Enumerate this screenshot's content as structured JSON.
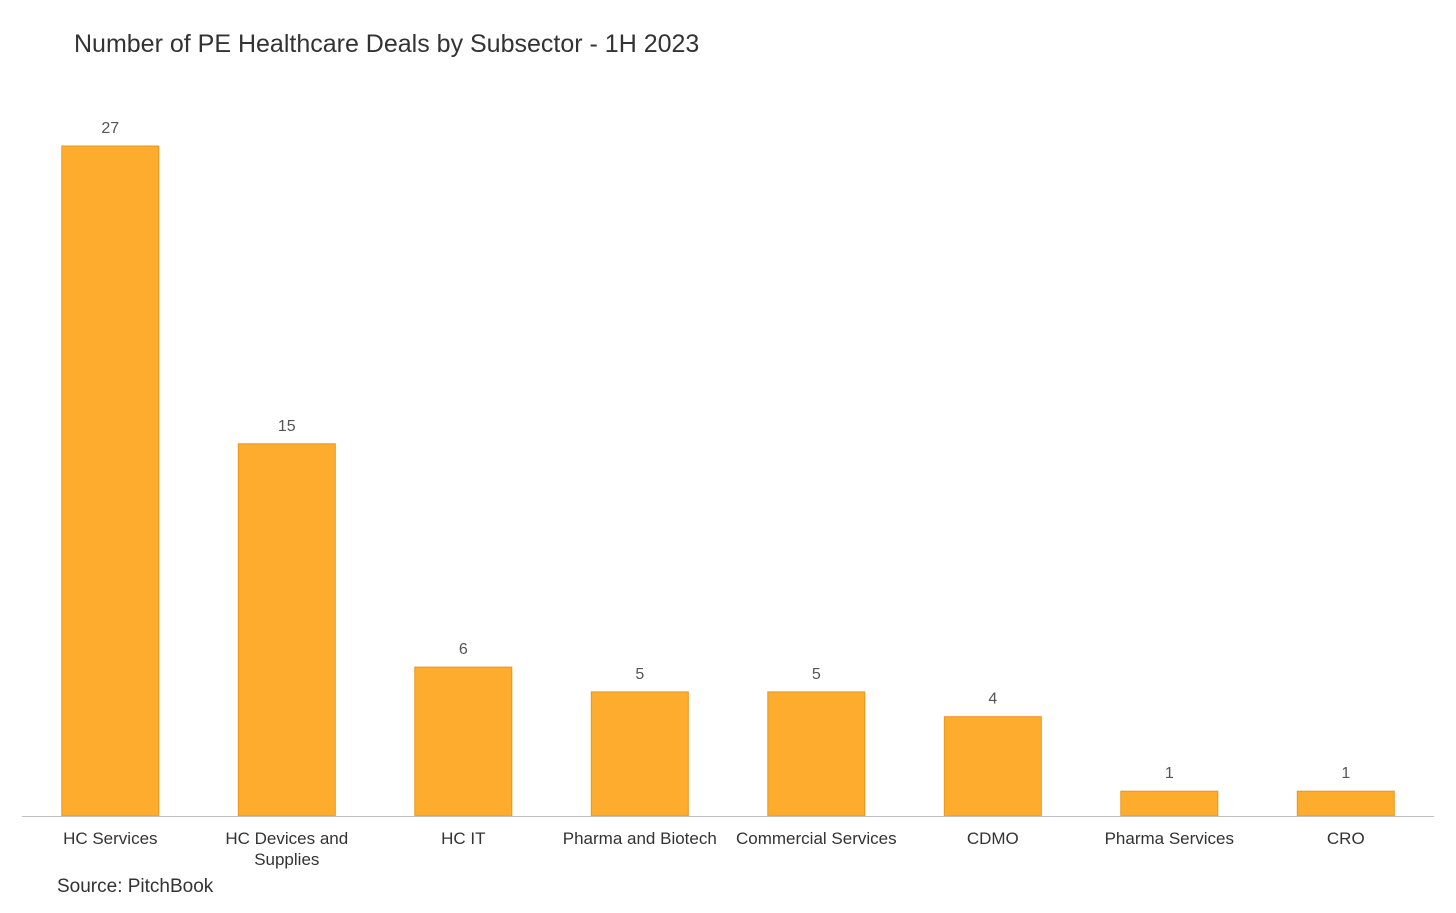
{
  "chart_data": {
    "type": "bar",
    "title": "Number of PE Healthcare Deals by Subsector - 1H 2023",
    "xlabel": "",
    "ylabel": "",
    "categories": [
      "HC Services",
      "HC Devices and Supplies",
      "HC IT",
      "Pharma and Biotech",
      "Commercial Services",
      "CDMO",
      "Pharma Services",
      "CRO"
    ],
    "values": [
      27,
      15,
      6,
      5,
      5,
      4,
      1,
      1
    ],
    "data_labels": true,
    "ylim": [
      0,
      27
    ],
    "grid": false,
    "legend": "none",
    "bar_color": "#FDAC2D",
    "bar_edge_color": "#E9961B",
    "axis_color": "#BFBFBF"
  },
  "source": "Source: PitchBook"
}
